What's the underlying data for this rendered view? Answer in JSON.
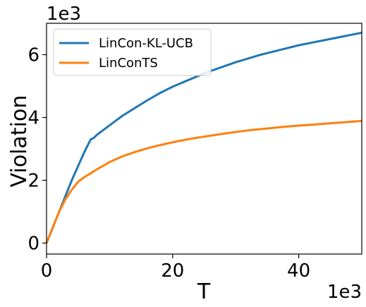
{
  "chart_data": {
    "type": "line",
    "xlabel": "T",
    "ylabel": "Violation",
    "x_offset_label": "1e3",
    "y_offset_label": "1e3",
    "xlim": [
      0,
      50
    ],
    "ylim": [
      -0.35,
      7.0
    ],
    "xticks": [
      0,
      20,
      40
    ],
    "yticks": [
      0,
      2,
      4,
      6
    ],
    "grid": false,
    "legend_position": "top-left",
    "series": [
      {
        "name": "LinCon-KL-UCB",
        "color": "#1f77b4",
        "x": [
          0,
          1,
          2,
          3,
          4,
          5,
          6,
          7,
          7.5,
          8,
          10,
          12,
          14,
          16,
          18,
          20,
          22,
          24,
          26,
          28,
          30,
          32,
          34,
          36,
          38,
          40,
          42,
          44,
          46,
          48,
          50
        ],
        "y": [
          0.0,
          0.5,
          1.0,
          1.5,
          2.0,
          2.45,
          2.9,
          3.3,
          3.35,
          3.45,
          3.75,
          4.05,
          4.3,
          4.55,
          4.78,
          4.98,
          5.15,
          5.32,
          5.48,
          5.62,
          5.76,
          5.88,
          6.0,
          6.1,
          6.2,
          6.3,
          6.38,
          6.46,
          6.54,
          6.62,
          6.7
        ]
      },
      {
        "name": "LinConTS",
        "color": "#ff7f0e",
        "x": [
          0,
          1,
          2,
          3,
          4,
          5,
          6,
          8,
          10,
          12,
          14,
          16,
          18,
          20,
          22,
          24,
          26,
          28,
          30,
          32,
          34,
          36,
          38,
          40,
          42,
          44,
          46,
          48,
          50
        ],
        "y": [
          0.0,
          0.5,
          1.0,
          1.4,
          1.7,
          1.95,
          2.1,
          2.35,
          2.58,
          2.76,
          2.9,
          3.02,
          3.12,
          3.21,
          3.29,
          3.36,
          3.42,
          3.48,
          3.54,
          3.59,
          3.63,
          3.67,
          3.71,
          3.74,
          3.77,
          3.8,
          3.83,
          3.86,
          3.89
        ]
      }
    ]
  }
}
